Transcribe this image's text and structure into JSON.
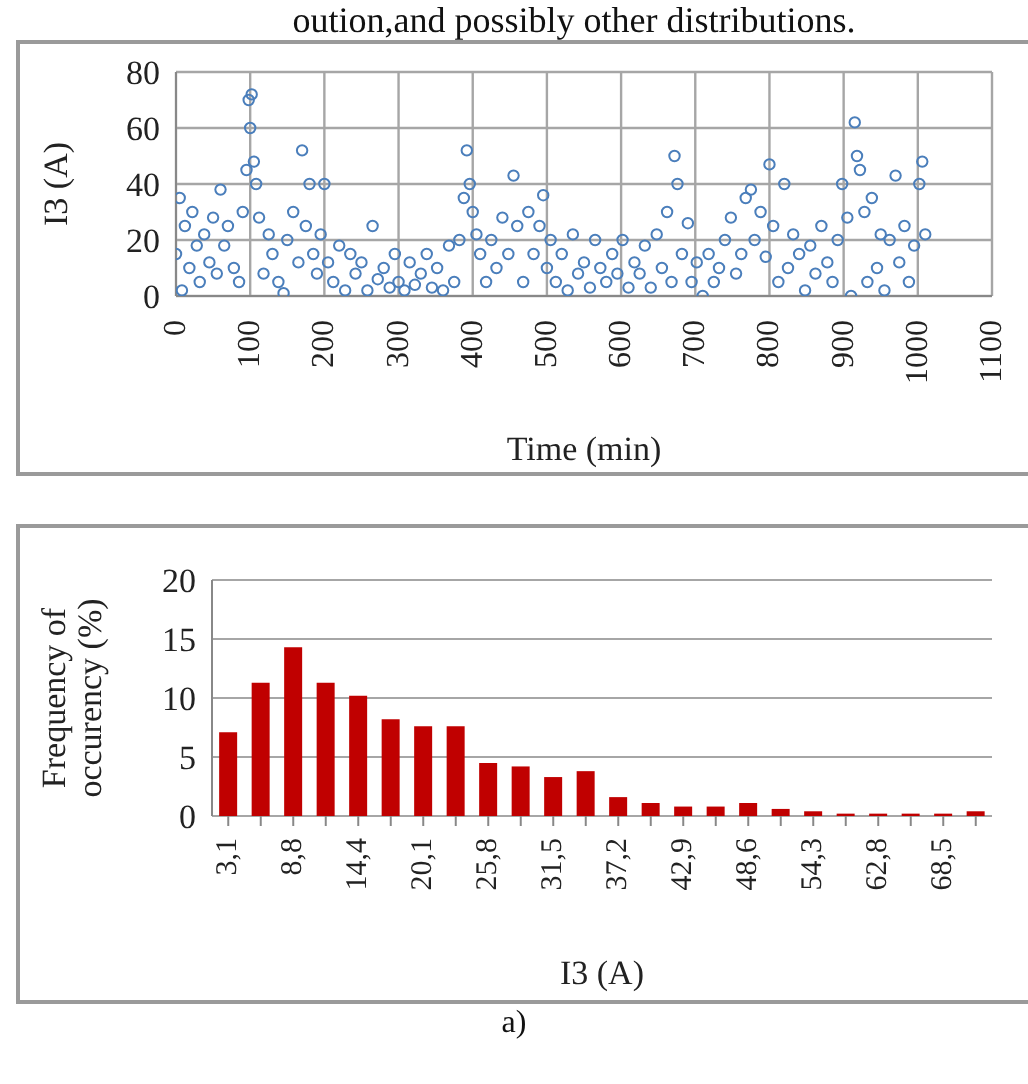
{
  "chart_data": [
    {
      "type": "scatter",
      "xlabel": "Time (min)",
      "ylabel": "I3 (A)",
      "annotations": [
        "oution,and possibly other distributions."
      ],
      "x": [
        0,
        5,
        8,
        12,
        18,
        22,
        28,
        32,
        38,
        45,
        50,
        55,
        60,
        65,
        70,
        78,
        85,
        90,
        95,
        98,
        100,
        102,
        105,
        108,
        112,
        118,
        125,
        130,
        138,
        145,
        150,
        158,
        165,
        170,
        175,
        180,
        185,
        190,
        195,
        200,
        205,
        212,
        220,
        228,
        235,
        242,
        250,
        258,
        265,
        272,
        280,
        288,
        295,
        300,
        308,
        315,
        322,
        330,
        338,
        345,
        352,
        360,
        368,
        375,
        382,
        388,
        392,
        396,
        400,
        405,
        410,
        418,
        425,
        432,
        440,
        448,
        455,
        460,
        468,
        475,
        482,
        490,
        495,
        500,
        505,
        512,
        520,
        528,
        535,
        542,
        550,
        558,
        565,
        572,
        580,
        588,
        595,
        602,
        610,
        618,
        625,
        632,
        640,
        648,
        655,
        662,
        668,
        672,
        676,
        682,
        690,
        695,
        702,
        710,
        718,
        725,
        732,
        740,
        748,
        755,
        762,
        768,
        775,
        780,
        788,
        795,
        800,
        805,
        812,
        820,
        825,
        832,
        840,
        848,
        855,
        862,
        870,
        878,
        885,
        892,
        898,
        905,
        910,
        915,
        918,
        922,
        928,
        932,
        938,
        945,
        950,
        955,
        962,
        970,
        975,
        982,
        988,
        995,
        1002,
        1006,
        1010
      ],
      "series": [
        {
          "color": "#4a7ebb",
          "values": [
            15,
            35,
            2,
            25,
            10,
            30,
            18,
            5,
            22,
            12,
            28,
            8,
            38,
            18,
            25,
            10,
            5,
            30,
            45,
            70,
            60,
            72,
            48,
            40,
            28,
            8,
            22,
            15,
            5,
            1,
            20,
            30,
            12,
            52,
            25,
            40,
            15,
            8,
            22,
            40,
            12,
            5,
            18,
            2,
            15,
            8,
            12,
            2,
            25,
            6,
            10,
            3,
            15,
            5,
            2,
            12,
            4,
            8,
            15,
            3,
            10,
            2,
            18,
            5,
            20,
            35,
            52,
            40,
            30,
            22,
            15,
            5,
            20,
            10,
            28,
            15,
            43,
            25,
            5,
            30,
            15,
            25,
            36,
            10,
            20,
            5,
            15,
            2,
            22,
            8,
            12,
            3,
            20,
            10,
            5,
            15,
            8,
            20,
            3,
            12,
            8,
            18,
            3,
            22,
            10,
            30,
            5,
            50,
            40,
            15,
            26,
            5,
            12,
            0,
            15,
            5,
            10,
            20,
            28,
            8,
            15,
            35,
            38,
            20,
            30,
            14,
            47,
            25,
            5,
            40,
            10,
            22,
            15,
            2,
            18,
            8,
            25,
            12,
            5,
            20,
            40,
            28,
            0,
            62,
            50,
            45,
            30,
            5,
            35,
            10,
            22,
            2,
            20,
            43,
            12,
            25,
            5,
            18,
            40,
            48,
            22
          ]
        }
      ],
      "xlim": [
        0,
        1100
      ],
      "xticks": [
        0,
        100,
        200,
        300,
        400,
        500,
        600,
        700,
        800,
        900,
        1000,
        1100
      ],
      "ylim": [
        0,
        80
      ],
      "yticks": [
        0,
        20,
        40,
        60,
        80
      ],
      "grid": true,
      "marker": "circle"
    },
    {
      "type": "bar",
      "xlabel": "I3 (A)",
      "ylabel": "Frequency of occurency (%)",
      "annotations": [
        "a)"
      ],
      "categories": [
        "3,1",
        null,
        "8,8",
        null,
        "14,4",
        null,
        "20,1",
        null,
        "25,8",
        null,
        "31,5",
        null,
        "37,2",
        null,
        "42,9",
        null,
        "48,6",
        null,
        "54,3",
        null,
        "62,8",
        null,
        "68,5",
        null
      ],
      "values": [
        7.1,
        11.3,
        14.3,
        11.3,
        10.2,
        8.2,
        7.6,
        7.6,
        4.5,
        4.2,
        3.3,
        3.8,
        1.6,
        1.1,
        0.8,
        0.8,
        1.1,
        0.6,
        0.4,
        0.2,
        0.2,
        0.2,
        0.2,
        0.4
      ],
      "color": "#c00000",
      "ylim": [
        0,
        20
      ],
      "yticks": [
        0,
        5,
        10,
        15,
        20
      ],
      "grid": "y"
    }
  ]
}
